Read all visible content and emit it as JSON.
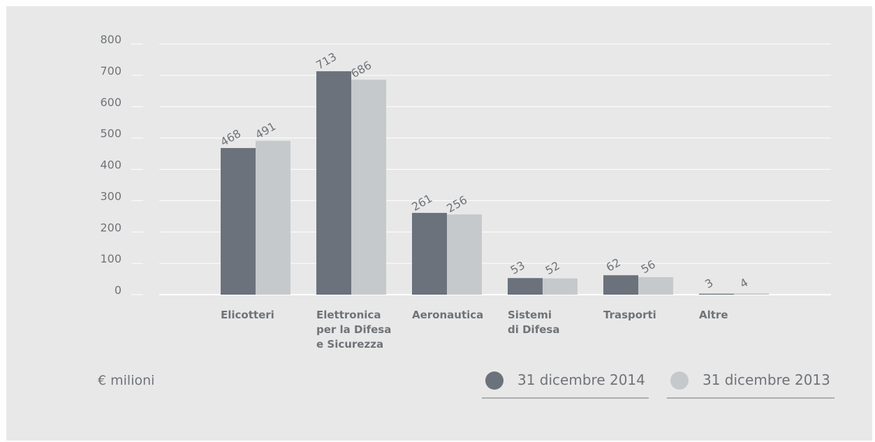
{
  "chart_data": {
    "type": "bar",
    "categories": [
      [
        "Elicotteri"
      ],
      [
        "Elettronica",
        "per la Difesa",
        "e Sicurezza"
      ],
      [
        "Aeronautica"
      ],
      [
        "Sistemi",
        "di Difesa"
      ],
      [
        "Trasporti"
      ],
      [
        "Altre"
      ]
    ],
    "series": [
      {
        "name": "31 dicembre 2014",
        "values": [
          468,
          713,
          261,
          53,
          62,
          3
        ],
        "color": "#6b727b"
      },
      {
        "name": "31 dicembre 2013",
        "values": [
          491,
          686,
          256,
          52,
          56,
          4
        ],
        "color": "#c6c9cc"
      }
    ],
    "ylim": [
      0,
      800
    ],
    "yticks": [
      0,
      100,
      200,
      300,
      400,
      500,
      600,
      700,
      800
    ],
    "unit_label": "€ milioni",
    "grid": true,
    "legend_position": "bottom-right"
  }
}
